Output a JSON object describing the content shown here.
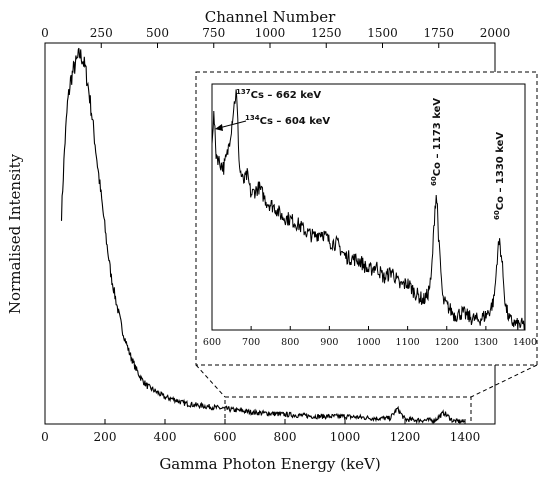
{
  "chart_data": {
    "type": "line",
    "title": "",
    "xlabel": "Gamma Photon Energy (keV)",
    "ylabel": "Normalised Intensity",
    "x2label": "Channel Number",
    "xlim": [
      0,
      1500
    ],
    "x2lim": [
      0,
      2000
    ],
    "x_ticks": [
      "0",
      "200",
      "400",
      "600",
      "800",
      "1000",
      "1200",
      "1400"
    ],
    "x2_ticks": [
      "0",
      "250",
      "500",
      "750",
      "1000",
      "1250",
      "1500",
      "1750",
      "2000"
    ],
    "grid": false,
    "legend": "none",
    "series": [
      {
        "x": [
          55,
          65,
          75,
          85,
          95,
          105,
          115,
          125,
          135,
          145,
          155,
          165,
          175,
          190,
          205,
          220,
          240,
          260,
          280,
          300,
          320,
          340,
          360,
          380,
          400,
          430,
          460,
          500,
          550,
          600,
          650,
          700,
          800,
          900,
          1000,
          1100,
          1150,
          1175,
          1200,
          1250,
          1300,
          1330,
          1360,
          1400
        ],
        "y": [
          0.55,
          0.72,
          0.84,
          0.9,
          0.93,
          0.95,
          0.97,
          0.96,
          0.93,
          0.88,
          0.82,
          0.75,
          0.68,
          0.58,
          0.48,
          0.39,
          0.31,
          0.24,
          0.19,
          0.15,
          0.12,
          0.1,
          0.09,
          0.08,
          0.07,
          0.065,
          0.055,
          0.05,
          0.045,
          0.04,
          0.035,
          0.03,
          0.025,
          0.02,
          0.02,
          0.015,
          0.015,
          0.04,
          0.012,
          0.01,
          0.01,
          0.03,
          0.008,
          0.006
        ]
      }
    ],
    "inset": {
      "xlim": [
        600,
        1400
      ],
      "x_ticks": [
        "600",
        "700",
        "800",
        "900",
        "1000",
        "1100",
        "1200",
        "1300",
        "1400"
      ],
      "x": [
        600,
        605,
        610,
        615,
        620,
        630,
        640,
        650,
        655,
        660,
        662,
        665,
        670,
        680,
        690,
        700,
        720,
        740,
        760,
        780,
        800,
        820,
        840,
        860,
        880,
        900,
        920,
        940,
        960,
        980,
        1000,
        1020,
        1040,
        1060,
        1080,
        1100,
        1120,
        1140,
        1150,
        1160,
        1165,
        1170,
        1173,
        1176,
        1180,
        1190,
        1200,
        1220,
        1240,
        1260,
        1280,
        1300,
        1310,
        1320,
        1325,
        1330,
        1335,
        1340,
        1350,
        1360,
        1380,
        1400
      ],
      "y": [
        0.78,
        0.88,
        0.72,
        0.7,
        0.68,
        0.66,
        0.72,
        0.83,
        0.9,
        0.95,
        0.97,
        0.88,
        0.66,
        0.6,
        0.63,
        0.55,
        0.58,
        0.52,
        0.5,
        0.46,
        0.45,
        0.43,
        0.4,
        0.38,
        0.4,
        0.36,
        0.35,
        0.3,
        0.29,
        0.28,
        0.24,
        0.26,
        0.21,
        0.24,
        0.18,
        0.19,
        0.15,
        0.12,
        0.14,
        0.2,
        0.35,
        0.5,
        0.55,
        0.5,
        0.35,
        0.12,
        0.1,
        0.06,
        0.07,
        0.05,
        0.04,
        0.06,
        0.08,
        0.12,
        0.2,
        0.32,
        0.36,
        0.3,
        0.1,
        0.04,
        0.02,
        0.02
      ]
    },
    "annotations": [
      {
        "isotope": "137",
        "label": "Cs – 662 keV"
      },
      {
        "isotope": "134",
        "label": "Cs – 604 keV"
      },
      {
        "isotope": "60",
        "label": "Co – 1173 keV"
      },
      {
        "isotope": "60",
        "label": "Co – 1330 keV"
      }
    ]
  }
}
